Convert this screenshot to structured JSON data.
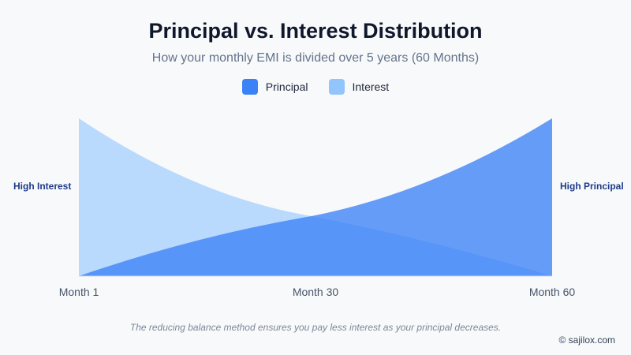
{
  "chart_data": {
    "type": "area",
    "title": "Principal vs. Interest Distribution",
    "subtitle": "How your monthly EMI is divided over 5 years (60 Months)",
    "categories": [
      "Month 1",
      "Month 30",
      "Month 60"
    ],
    "x": [
      1,
      30,
      60
    ],
    "series": [
      {
        "name": "Principal",
        "color": "#3b82f6",
        "values": [
          0,
          0.38,
          1.0
        ]
      },
      {
        "name": "Interest",
        "color": "#93c5fd",
        "values": [
          1.0,
          0.38,
          0
        ]
      }
    ],
    "xlim": [
      1,
      60
    ],
    "ylim": [
      0,
      1
    ],
    "left_annotation": "High Interest",
    "right_annotation": "High Principal",
    "legend": "top-center",
    "grid": false
  },
  "legend": {
    "principal": "Principal",
    "interest": "Interest"
  },
  "footnote": "The reducing balance method ensures you pay less interest as your principal decreases.",
  "credit": "© sajilox.com"
}
